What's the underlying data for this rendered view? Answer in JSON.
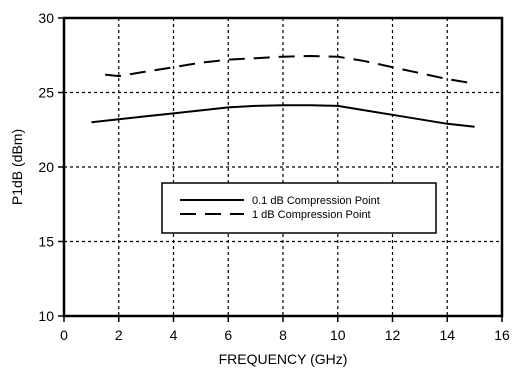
{
  "chart_data": {
    "type": "line",
    "title": "",
    "xlabel": "FREQUENCY (GHz)",
    "ylabel": "P1dB (dBm)",
    "xlim": [
      0,
      16
    ],
    "ylim": [
      10,
      30
    ],
    "xticks": [
      0,
      2,
      4,
      6,
      8,
      10,
      12,
      14,
      16
    ],
    "yticks": [
      10,
      15,
      20,
      25,
      30
    ],
    "grid": true,
    "legend_position": "center-right",
    "series": [
      {
        "name": "0.1 dB Compression Point",
        "style": "solid",
        "color": "#000000",
        "x": [
          1,
          2,
          3,
          4,
          5,
          6,
          7,
          8,
          9,
          10,
          11,
          12,
          13,
          14,
          15
        ],
        "y": [
          23.0,
          23.2,
          23.4,
          23.6,
          23.8,
          24.0,
          24.1,
          24.15,
          24.15,
          24.1,
          23.8,
          23.5,
          23.2,
          22.9,
          22.7
        ]
      },
      {
        "name": "1 dB Compression Point",
        "style": "dashed",
        "color": "#000000",
        "x": [
          1.5,
          2,
          3,
          4,
          5,
          6,
          7,
          8,
          9,
          10,
          11,
          12,
          13,
          14,
          15
        ],
        "y": [
          26.2,
          26.1,
          26.4,
          26.7,
          27.0,
          27.2,
          27.3,
          27.4,
          27.45,
          27.4,
          27.1,
          26.7,
          26.3,
          25.9,
          25.6
        ]
      }
    ]
  }
}
